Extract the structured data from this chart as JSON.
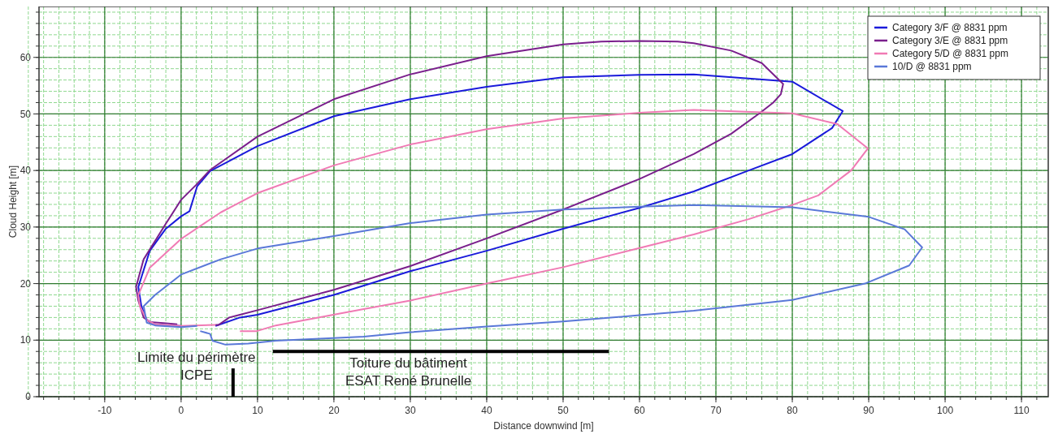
{
  "chart_data": {
    "type": "line",
    "xlabel": "Distance downwind [m]",
    "ylabel": "Cloud Height [m]",
    "xlim": [
      -18.6,
      113.5
    ],
    "ylim": [
      0,
      69
    ],
    "xticks": [
      -10,
      0,
      10,
      20,
      30,
      40,
      50,
      60,
      70,
      80,
      90,
      100,
      110
    ],
    "yticks": [
      0,
      10,
      20,
      30,
      40,
      50,
      60
    ],
    "grid": true,
    "legend": "top right",
    "marker": "none",
    "line_style": "solid",
    "series": [
      {
        "name": "Category 3/F @ 8831 ppm",
        "color": "#1a1adb",
        "x": [
          0,
          -3.4,
          -4.5,
          -5.2,
          -5.6,
          -4.1,
          -2,
          0,
          1.1,
          2.1,
          3.8,
          10,
          20,
          30,
          40,
          50,
          60,
          67.1,
          80,
          86.6,
          85.2,
          80,
          74.3,
          67.1,
          60,
          50,
          40,
          30,
          20,
          10,
          7.7,
          4.9,
          4.5
        ],
        "values": [
          12.5,
          12.8,
          13.6,
          16,
          19.4,
          25.8,
          29.7,
          31.9,
          32.8,
          37.2,
          39.9,
          44.3,
          49.6,
          52.6,
          54.8,
          56.5,
          56.9,
          57,
          55.7,
          50.5,
          47.5,
          42.9,
          40,
          36.3,
          33.4,
          29.7,
          25.8,
          22.2,
          18,
          14.5,
          14,
          12.7,
          12.5
        ]
      },
      {
        "name": "Category 3/E @ 8831 ppm",
        "color": "#7a1f8c",
        "x": [
          -0.5,
          -2,
          -4.1,
          -4.9,
          -5.6,
          -5.9,
          -4.9,
          -2,
          0,
          2,
          3.8,
          10,
          20,
          30,
          40,
          50,
          55,
          60,
          65,
          67.1,
          72,
          76,
          78.8,
          78.5,
          77.5,
          75.8,
          72,
          67.1,
          60,
          50,
          40,
          30,
          20,
          10,
          7.7,
          6.3,
          4.9,
          4.5
        ],
        "values": [
          12.8,
          13,
          13.2,
          14,
          17,
          19.4,
          24.3,
          30.6,
          34.8,
          37.5,
          40.1,
          46,
          52.6,
          57,
          60.2,
          62.3,
          62.8,
          62.9,
          62.8,
          62.5,
          61.2,
          59,
          55.3,
          53.5,
          52,
          50.2,
          46.5,
          42.9,
          38.5,
          33.1,
          28,
          23.1,
          18.9,
          15.3,
          14.5,
          14,
          12.7,
          12.7
        ]
      },
      {
        "name": "Category 5/D @ 8831 ppm",
        "color": "#f07ab4",
        "x": [
          4.5,
          0,
          -3.4,
          -4.5,
          -5.4,
          -5.6,
          -4.1,
          0,
          5.2,
          10,
          20,
          30,
          40,
          50,
          60,
          67.1,
          80,
          85.9,
          89.9,
          87.7,
          83.4,
          80,
          74.3,
          67.1,
          60,
          50,
          40,
          30,
          23.9,
          12.4,
          9.9,
          7.7
        ],
        "values": [
          12.7,
          12.5,
          12.8,
          13.6,
          16,
          18,
          22.8,
          27.9,
          32.6,
          36,
          40.9,
          44.6,
          47.3,
          49.2,
          50.2,
          50.7,
          50.1,
          48.2,
          43.9,
          40,
          35.6,
          33.9,
          31.4,
          28.7,
          26.3,
          22.9,
          20,
          17,
          15.5,
          12.6,
          11.6,
          11.6
        ]
      },
      {
        "name": "10/D @ 8831 ppm",
        "color": "#5a78d8",
        "x": [
          2.1,
          0,
          -3.4,
          -4.5,
          -4.9,
          -3.4,
          0,
          5.2,
          10,
          20,
          30,
          40,
          50,
          60,
          67.1,
          80,
          90,
          94.7,
          97,
          95.3,
          89.5,
          80,
          67.1,
          60,
          50,
          40,
          30,
          23.9,
          12.4,
          8.8,
          5.8,
          4.1,
          3.8,
          2.5
        ],
        "values": [
          12.5,
          12.3,
          12.6,
          13.1,
          16,
          18,
          21.6,
          24.3,
          26.2,
          28.4,
          30.7,
          32.2,
          33.1,
          33.6,
          33.9,
          33.5,
          31.8,
          29.6,
          26.4,
          23.2,
          20,
          17.1,
          15.2,
          14.4,
          13.3,
          12.4,
          11.4,
          10.6,
          9.9,
          9.4,
          9.2,
          9.9,
          11.1,
          11.6
        ]
      },
      {
        "color": "#000000",
        "x": [
          6.8,
          6.8
        ],
        "values": [
          0,
          5
        ]
      },
      {
        "color": "#000000",
        "x": [
          12,
          56
        ],
        "values": [
          8,
          8
        ]
      }
    ],
    "annotations": [
      "Limite du périmètre\nICPE",
      "Toiture du bâtiment\nESAT René Brunelle"
    ]
  }
}
